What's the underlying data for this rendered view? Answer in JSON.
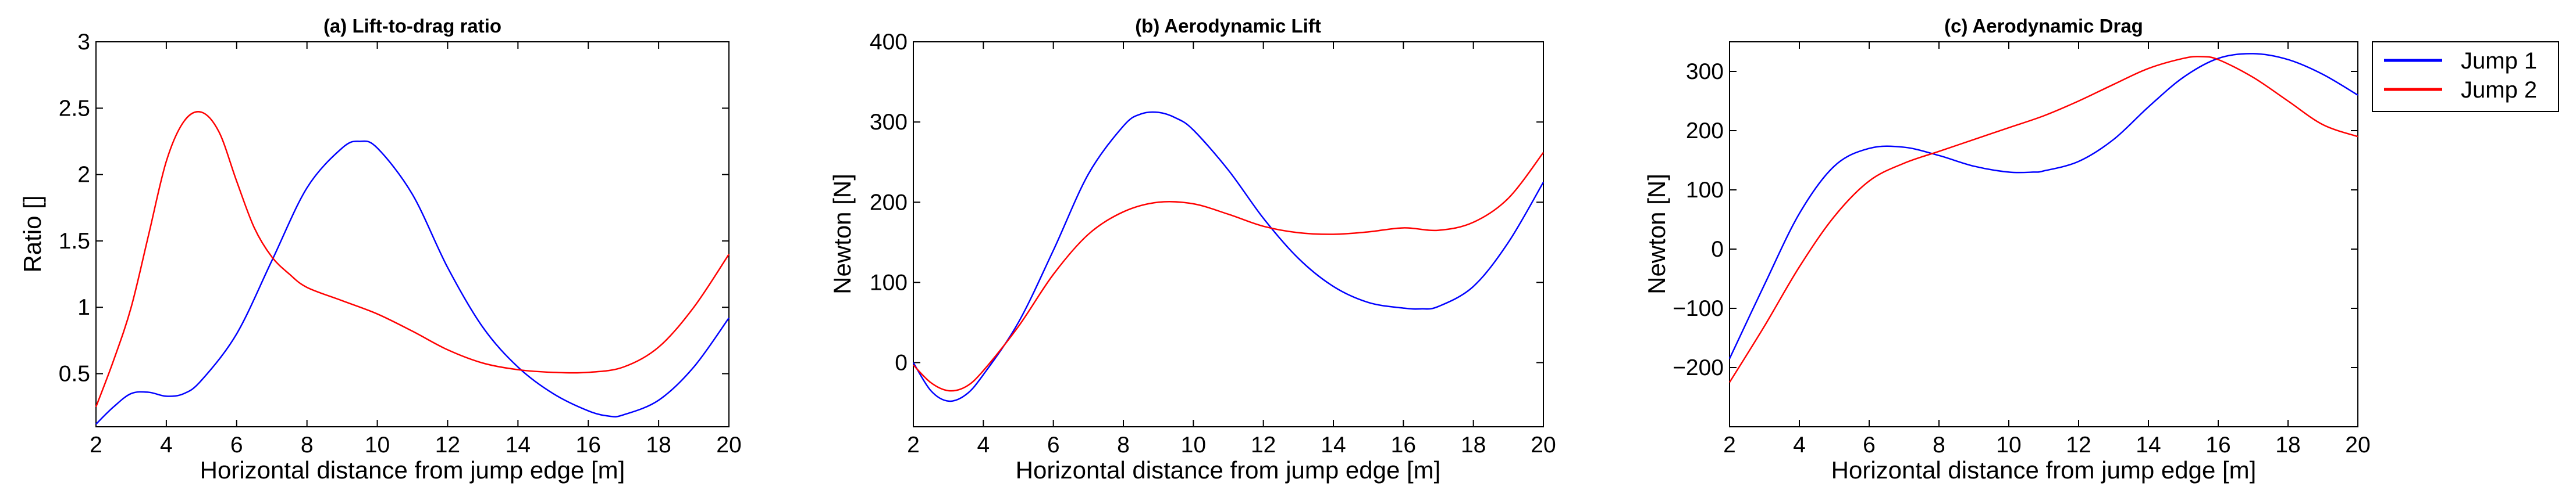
{
  "chart_data": [
    {
      "type": "line",
      "title": "(a) Lift-to-drag ratio",
      "xlabel": "Horizontal distance from jump edge [m]",
      "ylabel": "Ratio []",
      "xlim": [
        2,
        20
      ],
      "ylim": [
        0.1,
        3
      ],
      "xticks": [
        2,
        4,
        6,
        8,
        10,
        12,
        14,
        16,
        18,
        20
      ],
      "yticks": [
        0.5,
        1,
        1.5,
        2,
        2.5,
        3
      ],
      "grid": false,
      "series": [
        {
          "name": "Jump 1",
          "color": "#0000ff",
          "x": [
            2,
            2.5,
            3,
            3.5,
            4,
            4.5,
            5,
            6,
            7,
            8,
            9,
            9.5,
            10,
            11,
            12,
            13,
            14,
            15,
            16,
            16.6,
            17,
            18,
            19,
            20
          ],
          "y": [
            0.12,
            0.25,
            0.35,
            0.36,
            0.33,
            0.35,
            0.45,
            0.8,
            1.35,
            1.9,
            2.2,
            2.25,
            2.2,
            1.85,
            1.3,
            0.85,
            0.55,
            0.35,
            0.22,
            0.18,
            0.19,
            0.3,
            0.55,
            0.92
          ]
        },
        {
          "name": "Jump 2",
          "color": "#ff0000",
          "x": [
            2,
            2.5,
            3,
            3.5,
            4,
            4.5,
            5,
            5.5,
            6,
            6.5,
            7,
            7.5,
            8,
            9,
            10,
            11,
            12,
            13,
            14,
            15,
            16,
            17,
            18,
            19,
            20
          ],
          "y": [
            0.25,
            0.6,
            1.0,
            1.55,
            2.1,
            2.4,
            2.47,
            2.32,
            1.95,
            1.6,
            1.38,
            1.25,
            1.15,
            1.05,
            0.95,
            0.82,
            0.68,
            0.58,
            0.53,
            0.51,
            0.51,
            0.55,
            0.7,
            1.0,
            1.4
          ]
        }
      ]
    },
    {
      "type": "line",
      "title": "(b) Aerodynamic Lift",
      "xlabel": "Horizontal distance from jump edge [m]",
      "ylabel": "Newton [N]",
      "xlim": [
        2,
        20
      ],
      "ylim": [
        -80,
        400
      ],
      "xticks": [
        2,
        4,
        6,
        8,
        10,
        12,
        14,
        16,
        18,
        20
      ],
      "yticks": [
        0,
        100,
        200,
        300,
        400
      ],
      "grid": false,
      "series": [
        {
          "name": "Jump 1",
          "color": "#0000ff",
          "x": [
            2,
            2.5,
            3,
            3.5,
            4,
            5,
            6,
            7,
            8,
            8.5,
            9,
            9.5,
            10,
            11,
            12,
            13,
            14,
            15,
            16,
            16.5,
            17,
            18,
            19,
            20
          ],
          "y": [
            0,
            -35,
            -48,
            -40,
            -15,
            50,
            140,
            235,
            295,
            310,
            312,
            305,
            290,
            240,
            180,
            130,
            95,
            75,
            68,
            67,
            70,
            95,
            150,
            225
          ]
        },
        {
          "name": "Jump 2",
          "color": "#ff0000",
          "x": [
            2,
            2.5,
            3,
            3.5,
            4,
            5,
            6,
            7,
            8,
            9,
            10,
            11,
            12,
            13,
            14,
            15,
            16,
            17,
            18,
            19,
            20
          ],
          "y": [
            -3,
            -25,
            -35,
            -30,
            -10,
            45,
            110,
            160,
            188,
            200,
            198,
            185,
            170,
            162,
            160,
            163,
            168,
            165,
            175,
            205,
            262
          ]
        }
      ]
    },
    {
      "type": "line",
      "title": "(c) Aerodynamic Drag",
      "xlabel": "Horizontal distance from jump edge [m]",
      "ylabel": "Newton [N]",
      "xlim": [
        2,
        20
      ],
      "ylim": [
        -300,
        350
      ],
      "xticks": [
        2,
        4,
        6,
        8,
        10,
        12,
        14,
        16,
        18,
        20
      ],
      "yticks": [
        -200,
        -100,
        0,
        100,
        200,
        300
      ],
      "grid": false,
      "series": [
        {
          "name": "Jump 1",
          "color": "#0000ff",
          "x": [
            2,
            3,
            4,
            5,
            6,
            7,
            8,
            9,
            10,
            10.7,
            11,
            12,
            13,
            14,
            15,
            16,
            17,
            18,
            19,
            20
          ],
          "y": [
            -185,
            -60,
            60,
            140,
            170,
            172,
            158,
            140,
            130,
            130,
            132,
            148,
            185,
            240,
            290,
            322,
            330,
            320,
            295,
            260
          ]
        },
        {
          "name": "Jump 2",
          "color": "#ff0000",
          "x": [
            2,
            3,
            4,
            5,
            6,
            7,
            8,
            9,
            10,
            11,
            12,
            13,
            14,
            15,
            15.5,
            16,
            17,
            18,
            19,
            20
          ],
          "y": [
            -225,
            -130,
            -30,
            55,
            115,
            145,
            165,
            185,
            205,
            225,
            250,
            278,
            305,
            322,
            325,
            320,
            290,
            250,
            210,
            190
          ]
        }
      ]
    }
  ],
  "legend": {
    "entries": [
      {
        "label": "Jump 1",
        "color": "#0000ff"
      },
      {
        "label": "Jump 2",
        "color": "#ff0000"
      }
    ],
    "position": "top-right, outside plot (c)"
  }
}
